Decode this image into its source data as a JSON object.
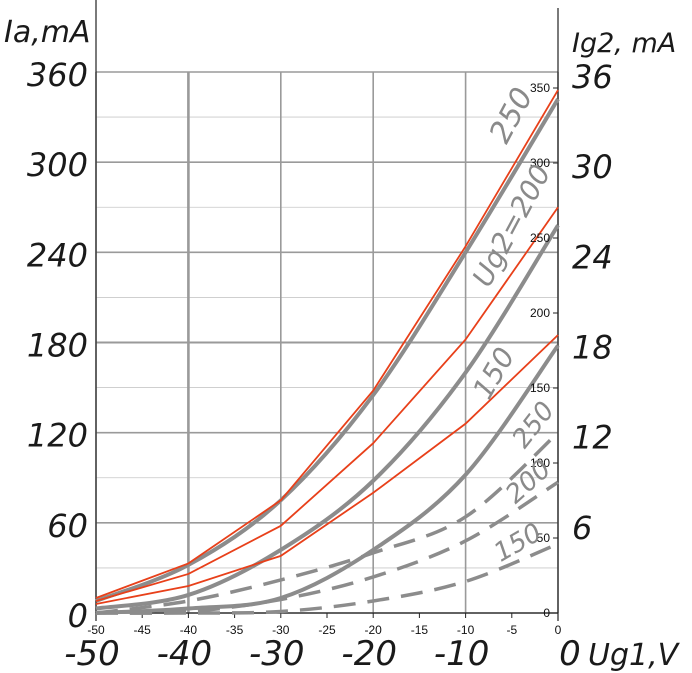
{
  "chart_data": {
    "type": "line",
    "x": [
      -50,
      -40,
      -30,
      -20,
      -10,
      0
    ],
    "x_tick_labels": [
      "-50",
      "-45",
      "-40",
      "-35",
      "-30",
      "-25",
      "-20",
      "-15",
      "-10",
      "-5",
      "0"
    ],
    "x_hand_labels": [
      "-50",
      "-40",
      "-30",
      "-20",
      "-10",
      "0"
    ],
    "xlabel": "Ug1,V",
    "xlim": [
      -50,
      0
    ],
    "ylabel_left": "Ia,mA",
    "ylim_left": [
      0,
      360
    ],
    "left_ticks": [
      "0",
      "60",
      "120",
      "180",
      "240",
      "300",
      "360"
    ],
    "ylabel_right": "Ig2, mA",
    "ylim_right": [
      0,
      36
    ],
    "right_ticks": [
      "6",
      "12",
      "18",
      "24",
      "30",
      "36"
    ],
    "inner_ticks": [
      "0",
      "50",
      "100",
      "150",
      "200",
      "250",
      "300",
      "350"
    ],
    "curve_labels": [
      "250",
      "Ug2=200",
      "150",
      "250",
      "200",
      "150"
    ],
    "grid": true,
    "colors": {
      "gray_curves": "#8c8c8c",
      "red_curves": "#e8401a",
      "grid": "#9a9a9a"
    },
    "series": [
      {
        "name": "250",
        "kind": "Ia",
        "style": "gray-solid",
        "values": [
          8,
          32,
          75,
          145,
          240,
          342
        ]
      },
      {
        "name": "Ug2=200",
        "kind": "Ia",
        "style": "gray-solid",
        "values": [
          3,
          12,
          42,
          88,
          160,
          258
        ]
      },
      {
        "name": "150",
        "kind": "Ia",
        "style": "gray-solid",
        "values": [
          0,
          3,
          10,
          42,
          92,
          178
        ]
      },
      {
        "name": "250",
        "kind": "Ig2",
        "style": "gray-dashed",
        "values": [
          0,
          0.8,
          2.2,
          4.0,
          6.4,
          12.0
        ]
      },
      {
        "name": "200",
        "kind": "Ig2",
        "style": "gray-dashed",
        "values": [
          0,
          0.1,
          0.9,
          2.4,
          4.8,
          8.7
        ]
      },
      {
        "name": "150",
        "kind": "Ig2",
        "style": "gray-dashed",
        "values": [
          0,
          0,
          0.1,
          0.8,
          2.1,
          4.6
        ]
      },
      {
        "kind": "overlay",
        "style": "red",
        "values": [
          10,
          33,
          75,
          148,
          244,
          348
        ]
      },
      {
        "kind": "overlay",
        "style": "red",
        "values": [
          8,
          26,
          58,
          113,
          182,
          270
        ]
      },
      {
        "kind": "overlay",
        "style": "red",
        "values": [
          6,
          18,
          38,
          80,
          126,
          185
        ]
      }
    ]
  }
}
